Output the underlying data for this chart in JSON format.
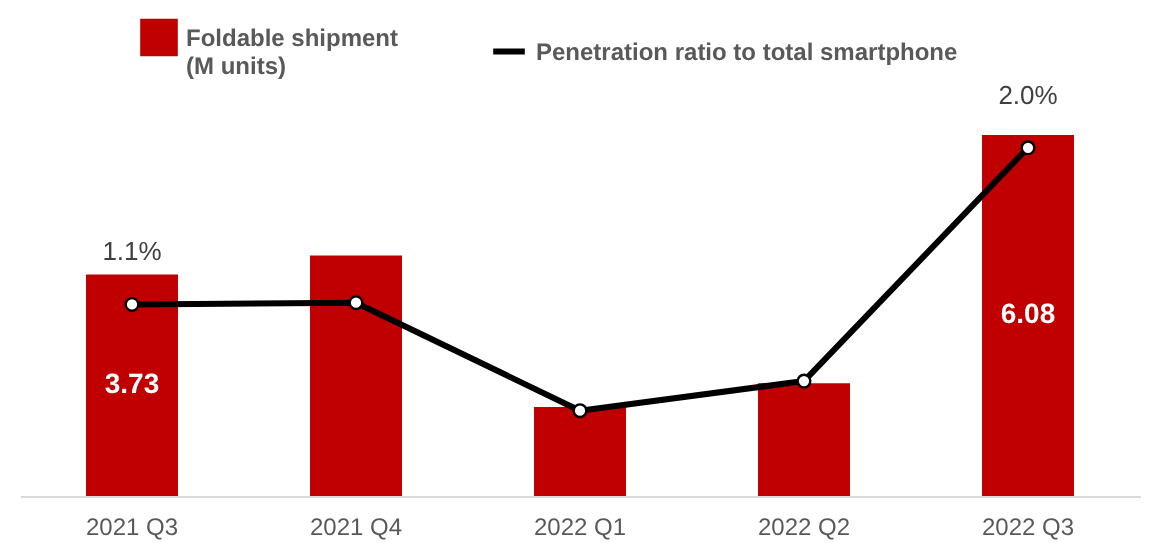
{
  "chart_data": {
    "type": "bar",
    "categories": [
      "2021 Q3",
      "2021 Q4",
      "2022 Q1",
      "2022 Q2",
      "2022 Q3"
    ],
    "series": [
      {
        "name": "Foldable shipment\n(M units)",
        "color": "#c00000",
        "values": [
          3.73,
          4.05,
          1.5,
          1.9,
          6.08
        ],
        "value_labels": [
          "3.73",
          null,
          null,
          null,
          "6.08"
        ]
      },
      {
        "name": "Penetration ratio to total smartphone",
        "type": "line",
        "axis": "y2",
        "color": "#000000",
        "values": [
          1.1,
          1.11,
          0.49,
          0.66,
          2.0
        ],
        "value_labels": [
          "1.1%",
          null,
          null,
          null,
          "2.0%"
        ]
      }
    ],
    "legend": "top",
    "marker": "circle",
    "grid": false
  }
}
